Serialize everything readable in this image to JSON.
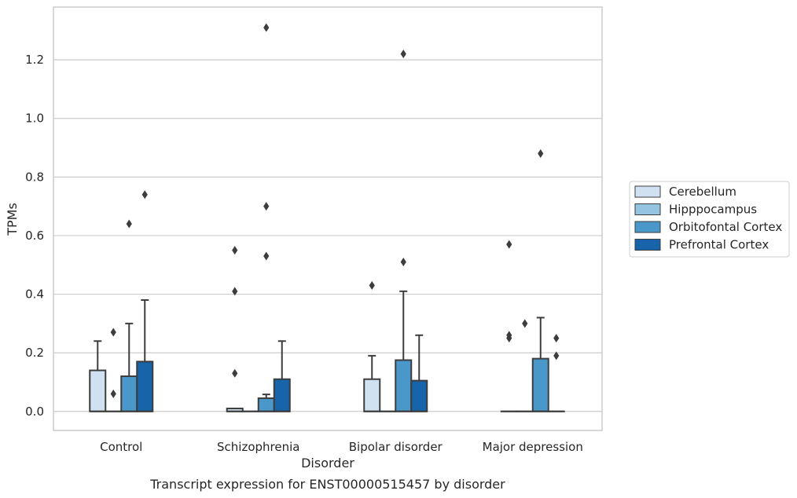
{
  "caption": "Transcript expression for ENST00000515457 by disorder",
  "chart_data": {
    "type": "box",
    "xlabel": "Disorder",
    "ylabel": "TPMs",
    "categories": [
      "Control",
      "Schizophrenia",
      "Bipolar disorder",
      "Major depression"
    ],
    "ylim": [
      -0.065,
      1.38
    ],
    "yticks": [
      0.0,
      0.2,
      0.4,
      0.6,
      0.8,
      1.0,
      1.2
    ],
    "ytick_labels": [
      "0.0",
      "0.2",
      "0.4",
      "0.6",
      "0.8",
      "1.0",
      "1.2"
    ],
    "grid": true,
    "legend_position": "right",
    "series": [
      {
        "name": "Cerebellum",
        "color": "#d0e1f2",
        "boxes": [
          {
            "q1": 0.0,
            "median": 0.0,
            "q3": 0.14,
            "whisker_low": 0.0,
            "whisker_high": 0.24,
            "outliers": []
          },
          {
            "q1": 0.0,
            "median": 0.0,
            "q3": 0.01,
            "whisker_low": 0.0,
            "whisker_high": 0.01,
            "outliers": [
              0.13,
              0.41,
              0.55
            ]
          },
          {
            "q1": 0.0,
            "median": 0.0,
            "q3": 0.11,
            "whisker_low": 0.0,
            "whisker_high": 0.19,
            "outliers": [
              0.43
            ]
          },
          {
            "q1": 0.0,
            "median": 0.0,
            "q3": 0.0,
            "whisker_low": 0.0,
            "whisker_high": 0.0,
            "outliers": [
              0.25,
              0.26,
              0.57
            ]
          }
        ]
      },
      {
        "name": "Hipppocampus",
        "color": "#94c4df",
        "boxes": [
          {
            "q1": 0.0,
            "median": 0.0,
            "q3": 0.0,
            "whisker_low": 0.0,
            "whisker_high": 0.0,
            "outliers": [
              0.06,
              0.27
            ]
          },
          {
            "q1": 0.0,
            "median": 0.0,
            "q3": 0.0,
            "whisker_low": 0.0,
            "whisker_high": 0.0,
            "outliers": []
          },
          {
            "q1": 0.0,
            "median": 0.0,
            "q3": 0.0,
            "whisker_low": 0.0,
            "whisker_high": 0.0,
            "outliers": []
          },
          {
            "q1": 0.0,
            "median": 0.0,
            "q3": 0.0,
            "whisker_low": 0.0,
            "whisker_high": 0.0,
            "outliers": [
              0.3
            ]
          }
        ]
      },
      {
        "name": "Orbitofontal Cortex",
        "color": "#4a98c9",
        "boxes": [
          {
            "q1": 0.0,
            "median": 0.0,
            "q3": 0.12,
            "whisker_low": 0.0,
            "whisker_high": 0.3,
            "outliers": [
              0.64
            ]
          },
          {
            "q1": 0.0,
            "median": 0.0,
            "q3": 0.045,
            "whisker_low": 0.0,
            "whisker_high": 0.058,
            "outliers": [
              0.53,
              0.7,
              1.31
            ]
          },
          {
            "q1": 0.0,
            "median": 0.0,
            "q3": 0.175,
            "whisker_low": 0.0,
            "whisker_high": 0.41,
            "outliers": [
              0.51,
              1.22
            ]
          },
          {
            "q1": 0.0,
            "median": 0.0,
            "q3": 0.18,
            "whisker_low": 0.0,
            "whisker_high": 0.32,
            "outliers": [
              0.88
            ]
          }
        ]
      },
      {
        "name": "Prefrontal Cortex",
        "color": "#1764ab",
        "boxes": [
          {
            "q1": 0.0,
            "median": 0.0,
            "q3": 0.17,
            "whisker_low": 0.0,
            "whisker_high": 0.38,
            "outliers": [
              0.74
            ]
          },
          {
            "q1": 0.0,
            "median": 0.0,
            "q3": 0.11,
            "whisker_low": 0.0,
            "whisker_high": 0.24,
            "outliers": []
          },
          {
            "q1": 0.0,
            "median": 0.0,
            "q3": 0.105,
            "whisker_low": 0.0,
            "whisker_high": 0.26,
            "outliers": []
          },
          {
            "q1": 0.0,
            "median": 0.0,
            "q3": 0.0,
            "whisker_low": 0.0,
            "whisker_high": 0.0,
            "outliers": [
              0.19,
              0.25
            ]
          }
        ]
      }
    ]
  }
}
